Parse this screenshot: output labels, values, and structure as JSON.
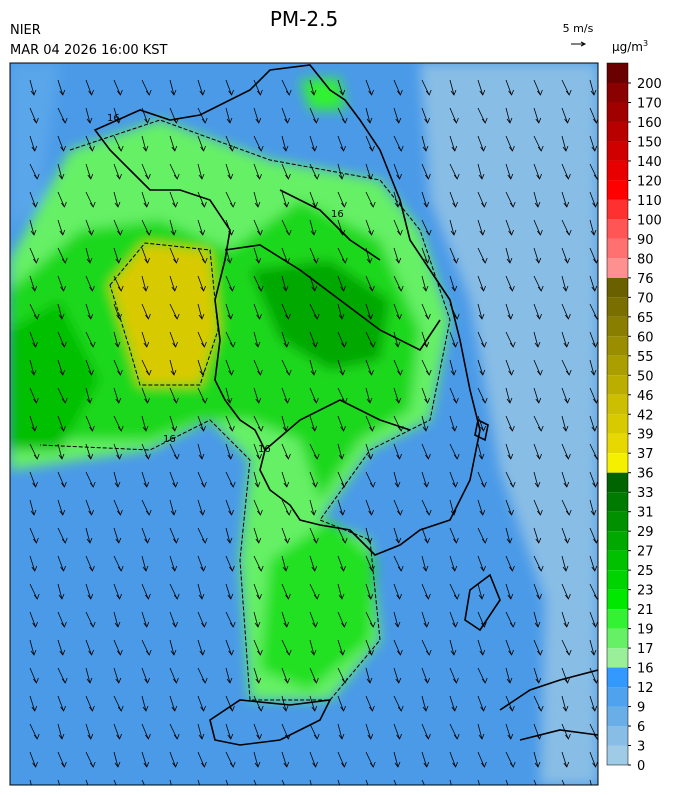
{
  "header": {
    "agency": "NIER",
    "title": "PM-2.5",
    "datetime": "MAR 04 2026 16:00 KST"
  },
  "wind_legend": {
    "label": "5 m/s"
  },
  "colorbar": {
    "unit": "μg/m",
    "unit_sup": "3",
    "ticks": [
      200,
      170,
      160,
      150,
      140,
      120,
      110,
      100,
      90,
      80,
      76,
      70,
      65,
      60,
      55,
      50,
      46,
      42,
      39,
      37,
      36,
      33,
      31,
      29,
      27,
      25,
      23,
      21,
      19,
      17,
      16,
      12,
      9,
      6,
      3,
      0
    ],
    "colors": [
      "#6b0000",
      "#8b0000",
      "#a00000",
      "#b80000",
      "#d00000",
      "#e80000",
      "#ff0000",
      "#ff3030",
      "#ff5555",
      "#ff7070",
      "#ff9090",
      "#6b6000",
      "#7a6e00",
      "#8a7e00",
      "#9a8e00",
      "#aa9e00",
      "#bbae00",
      "#ccbe00",
      "#d8ca00",
      "#e6d800",
      "#f4f000",
      "#006400",
      "#007a00",
      "#009000",
      "#00a800",
      "#00c000",
      "#00d400",
      "#00e800",
      "#33f233",
      "#66f066",
      "#99f099",
      "#3399ff",
      "#4fa3ee",
      "#6aaee8",
      "#88bde6",
      "#a0cbe6"
    ]
  },
  "map": {
    "contour_labels": [
      "16",
      "16",
      "16",
      "16"
    ]
  }
}
